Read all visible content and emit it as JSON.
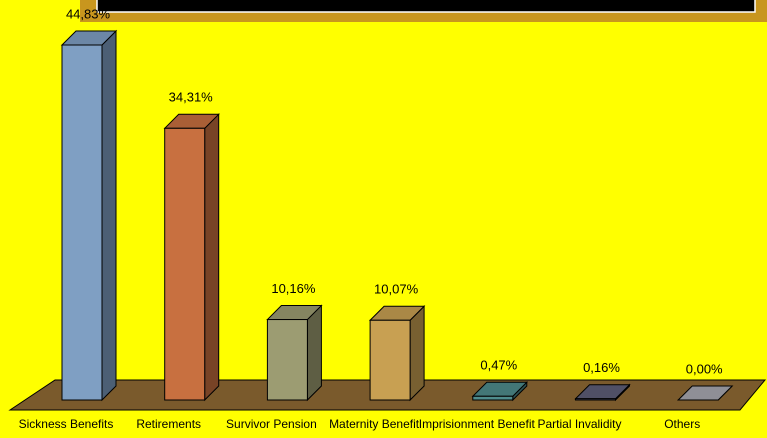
{
  "chart_data": {
    "type": "bar3d",
    "categories": [
      "Sickness Benefits",
      "Retirements",
      "Survivor Pension",
      "Maternity Benefit",
      "Imprisionment Benefit",
      "Partial Invalidity",
      "Others"
    ],
    "values": [
      44.83,
      34.31,
      10.16,
      10.07,
      0.47,
      0.16,
      0.0
    ],
    "value_labels": [
      "44,83%",
      "34,31%",
      "10,16%",
      "10,07%",
      "0,47%",
      "0,16%",
      "0,00%"
    ],
    "colors": [
      "#7f9fc3",
      "#c87040",
      "#9c9c72",
      "#c8a052",
      "#4f8c8c",
      "#5e5e78",
      "#a8a8b0"
    ]
  }
}
